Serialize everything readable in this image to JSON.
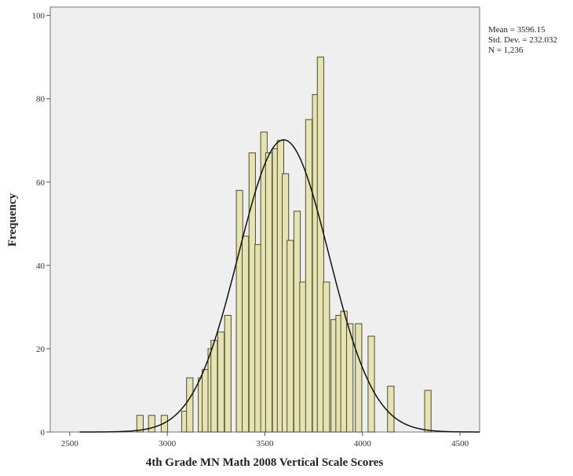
{
  "chart_data": {
    "type": "bar",
    "xlabel": "4th Grade MN Math 2008 Vertical Scale Scores",
    "ylabel": "Frequency",
    "xlim": [
      2400,
      4600
    ],
    "ylim": [
      0,
      102
    ],
    "x_ticks": [
      2500,
      3000,
      3500,
      4000,
      4500
    ],
    "y_ticks": [
      0,
      20,
      40,
      60,
      80,
      100
    ],
    "bin_width": 33,
    "bins": [
      {
        "x": 2860,
        "value": 4
      },
      {
        "x": 2920,
        "value": 4
      },
      {
        "x": 2985,
        "value": 4
      },
      {
        "x": 3090,
        "value": 5
      },
      {
        "x": 3115,
        "value": 13
      },
      {
        "x": 3175,
        "value": 13
      },
      {
        "x": 3195,
        "value": 15
      },
      {
        "x": 3225,
        "value": 20
      },
      {
        "x": 3240,
        "value": 22
      },
      {
        "x": 3275,
        "value": 24
      },
      {
        "x": 3310,
        "value": 28
      },
      {
        "x": 3370,
        "value": 58
      },
      {
        "x": 3400,
        "value": 47
      },
      {
        "x": 3435,
        "value": 67
      },
      {
        "x": 3465,
        "value": 45
      },
      {
        "x": 3495,
        "value": 72
      },
      {
        "x": 3520,
        "value": 67
      },
      {
        "x": 3555,
        "value": 68
      },
      {
        "x": 3580,
        "value": 70
      },
      {
        "x": 3605,
        "value": 62
      },
      {
        "x": 3630,
        "value": 46
      },
      {
        "x": 3665,
        "value": 53
      },
      {
        "x": 3695,
        "value": 36
      },
      {
        "x": 3725,
        "value": 75
      },
      {
        "x": 3760,
        "value": 81
      },
      {
        "x": 3785,
        "value": 90
      },
      {
        "x": 3815,
        "value": 36
      },
      {
        "x": 3855,
        "value": 27
      },
      {
        "x": 3880,
        "value": 28
      },
      {
        "x": 3905,
        "value": 29
      },
      {
        "x": 3935,
        "value": 26
      },
      {
        "x": 3980,
        "value": 26
      },
      {
        "x": 4045,
        "value": 23
      },
      {
        "x": 4145,
        "value": 11
      },
      {
        "x": 4335,
        "value": 10
      }
    ],
    "normal_curve": {
      "mean": 3596.15,
      "sd": 232.032,
      "n": 1236
    },
    "stats": {
      "mean": "Mean = 3596.15",
      "sd": "Std. Dev. = 232.032",
      "n": "N = 1,236"
    },
    "grid": false,
    "legend": "top-right",
    "colors": {
      "plot_background": "#efefef",
      "bar_fill": "#e6e3b2",
      "bar_stroke": "#4f4b33",
      "curve": "#111111"
    }
  }
}
